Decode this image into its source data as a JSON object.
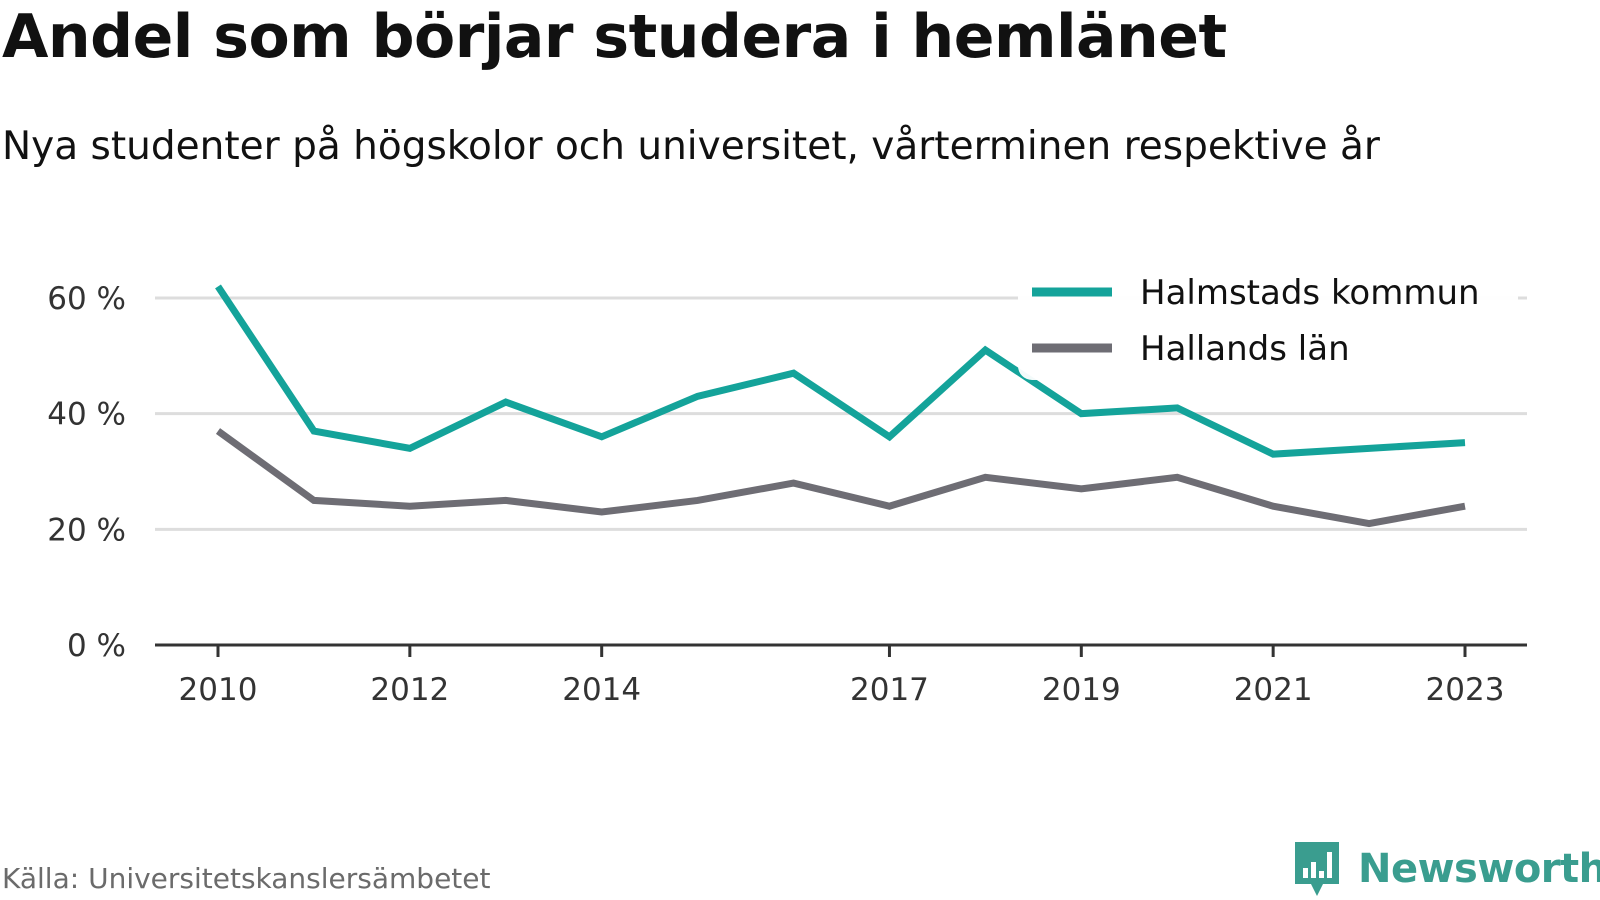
{
  "title": "Andel som börjar studera i hemlänet",
  "subtitle": "Nya studenter på högskolor och universitet, vårterminen respektive år",
  "source": "Källa: Universitetskanslersämbetet",
  "brand": {
    "name": "Newsworthy",
    "icon": "newsworthy-logo-icon",
    "color": "#3a9d8f"
  },
  "colors": {
    "halmstad": "#14a39a",
    "halland": "#6e6d74",
    "grid": "#dddddd",
    "axis": "#333333"
  },
  "chart_data": {
    "type": "line",
    "x": [
      2010,
      2011,
      2012,
      2013,
      2014,
      2015,
      2016,
      2017,
      2018,
      2019,
      2020,
      2021,
      2022,
      2023
    ],
    "xticks": [
      "2010",
      "2012",
      "2014",
      "2017",
      "2019",
      "2021",
      "2023"
    ],
    "yticks": [
      "0 %",
      "20 %",
      "40 %",
      "60 %"
    ],
    "ylim": [
      0,
      62
    ],
    "grid": true,
    "legend_position": "top-right",
    "series": [
      {
        "name": "Halmstads kommun",
        "color": "#14a39a",
        "values": [
          62,
          37,
          34,
          42,
          36,
          43,
          47,
          36,
          51,
          40,
          41,
          33,
          34,
          35
        ]
      },
      {
        "name": "Hallands län",
        "color": "#6e6d74",
        "values": [
          37,
          25,
          24,
          25,
          23,
          25,
          28,
          24,
          29,
          27,
          29,
          24,
          21,
          24
        ]
      }
    ]
  }
}
